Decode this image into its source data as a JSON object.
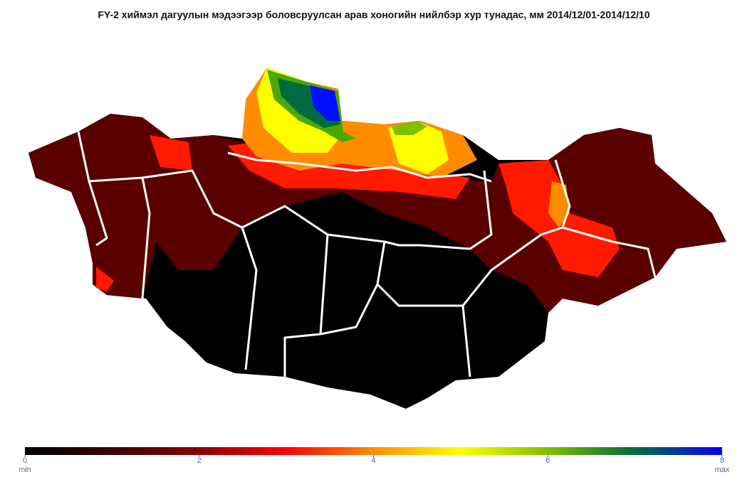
{
  "title": "FY-2  хиймэл дагуулын мэдээгээр боловсруулсан арав хоногийн нийлбэр хур тунадас, мм 2014/12/01-2014/12/10",
  "colorbar": {
    "lim": [
      0,
      8
    ],
    "ticks": [
      0,
      2,
      4,
      6,
      8
    ],
    "min_label": "min",
    "max_label": "max",
    "colors": [
      "#000000",
      "#3a0000",
      "#8b0000",
      "#ff0000",
      "#ff8c00",
      "#ffff00",
      "#7fbf00",
      "#006b3f",
      "#0000ff"
    ]
  }
}
